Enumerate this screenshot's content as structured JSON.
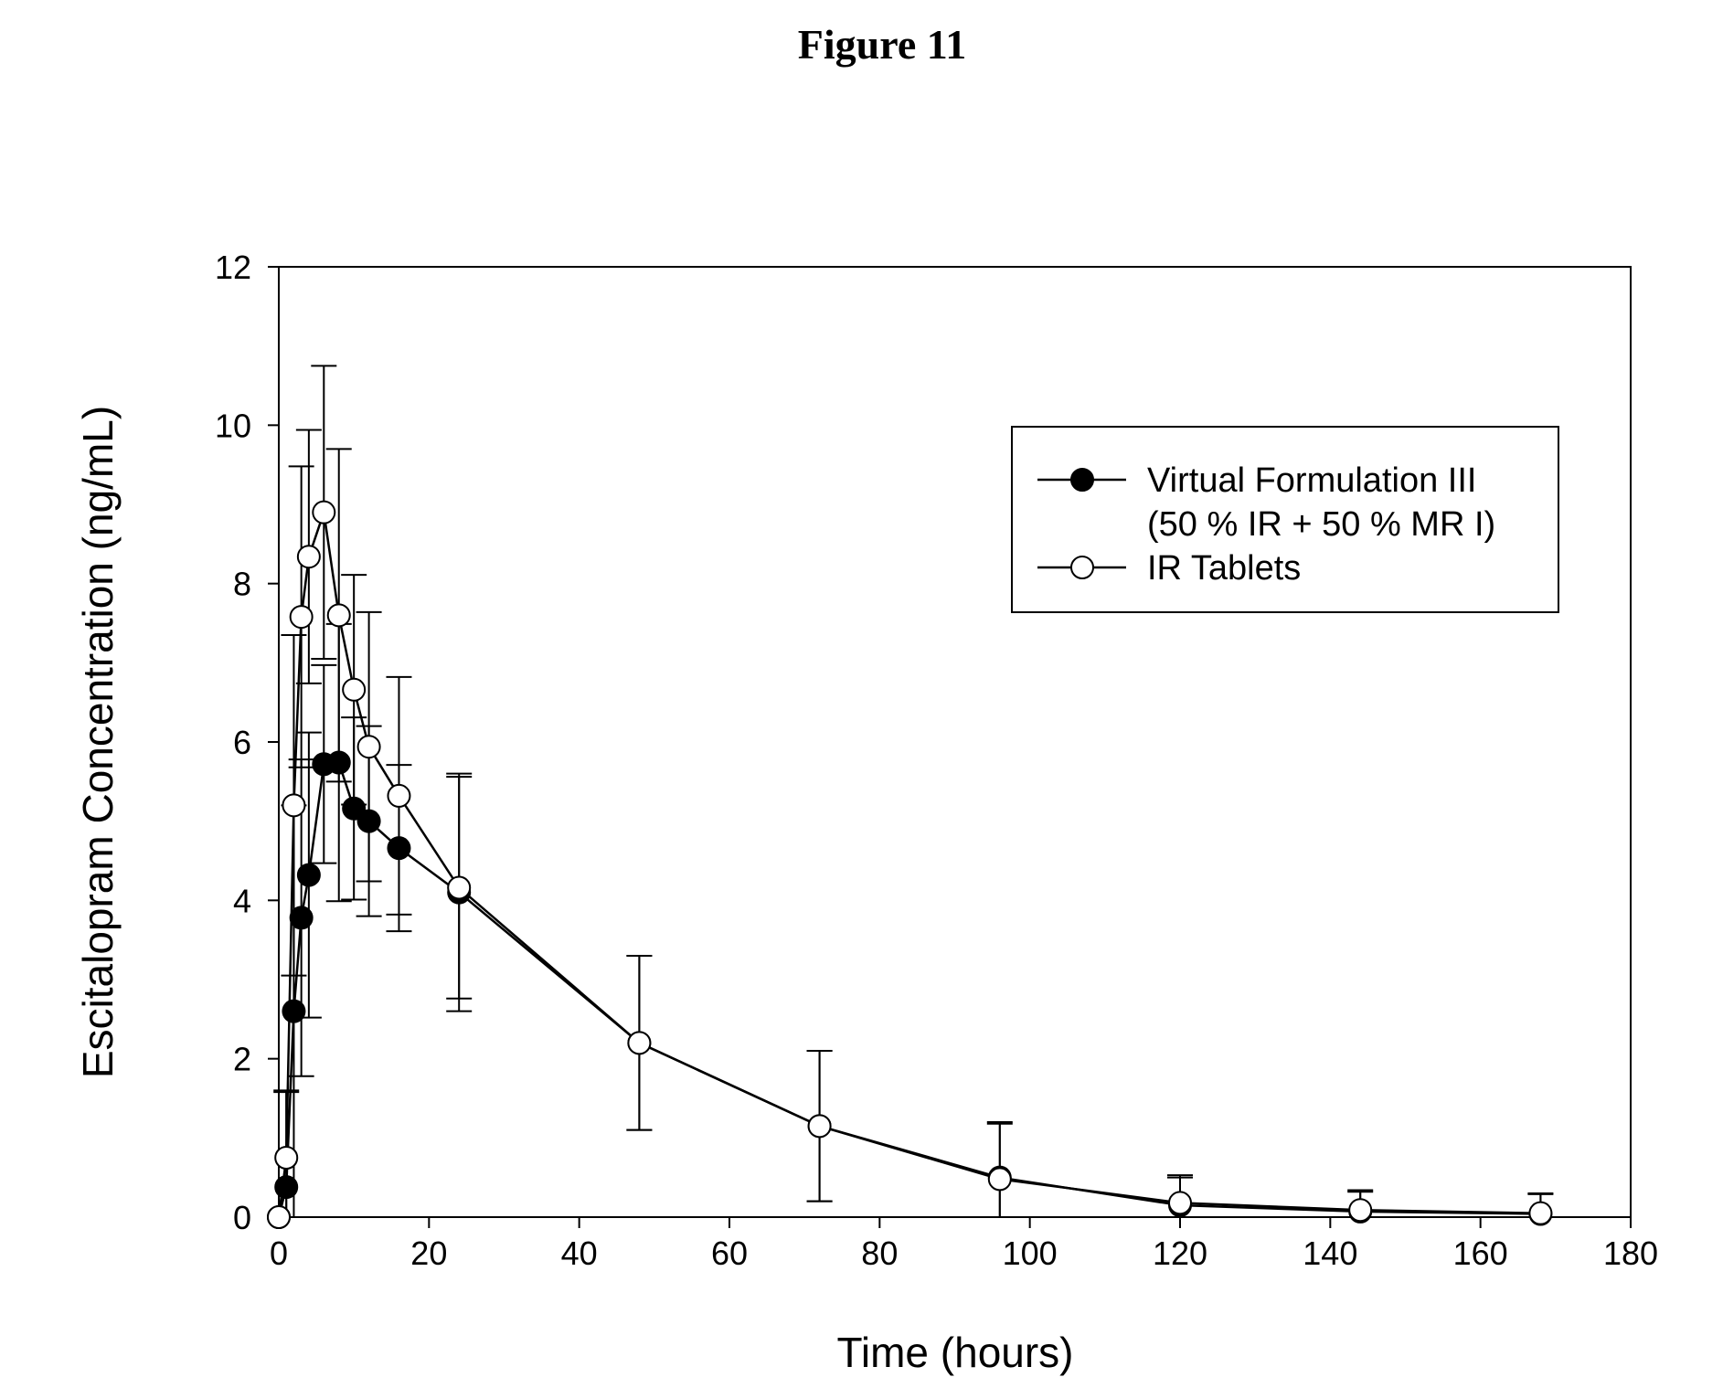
{
  "figure_title": "Figure 11",
  "chart_data": {
    "type": "line",
    "title": "",
    "xlabel": "Time (hours)",
    "ylabel": "Escitalopram Concentration (ng/mL)",
    "xlim": [
      0,
      180
    ],
    "ylim": [
      0,
      12
    ],
    "xticks": [
      0,
      20,
      40,
      60,
      80,
      100,
      120,
      140,
      160,
      180
    ],
    "yticks": [
      0,
      2,
      4,
      6,
      8,
      10,
      12
    ],
    "grid": false,
    "legend_position": "top-right",
    "series": [
      {
        "name": "Virtual Formulation III (50 %  IR + 50 % MR I)",
        "legend_lines": [
          "Virtual Formulation III",
          "(50 %  IR + 50 % MR I)"
        ],
        "marker": "filled-circle",
        "x": [
          0,
          1,
          2,
          3,
          4,
          6,
          8,
          10,
          12,
          16,
          24,
          48,
          72,
          96,
          120,
          144,
          168
        ],
        "y": [
          0,
          0.38,
          2.6,
          3.78,
          4.32,
          5.72,
          5.74,
          5.16,
          5.0,
          4.66,
          4.1,
          2.2,
          1.15,
          0.5,
          0.15,
          0.07,
          0.04
        ],
        "error": [
          0,
          1.2,
          2.6,
          2.0,
          1.8,
          1.25,
          1.75,
          1.15,
          1.2,
          1.05,
          1.5,
          1.1,
          0.95,
          0.7,
          0.35,
          0.25,
          0.25
        ]
      },
      {
        "name": "IR Tablets",
        "legend_lines": [
          "IR Tablets"
        ],
        "marker": "open-circle",
        "x": [
          0,
          1,
          2,
          3,
          4,
          6,
          8,
          10,
          12,
          16,
          24,
          48,
          72,
          96,
          120,
          144,
          168
        ],
        "y": [
          0,
          0.75,
          5.2,
          7.58,
          8.34,
          8.9,
          7.6,
          6.66,
          5.94,
          5.32,
          4.16,
          2.2,
          1.15,
          0.48,
          0.18,
          0.09,
          0.05
        ],
        "error": [
          0,
          0.85,
          2.15,
          1.9,
          1.6,
          1.85,
          2.1,
          1.45,
          1.7,
          1.5,
          1.4,
          1.1,
          0.95,
          0.7,
          0.35,
          0.25,
          0.25
        ]
      }
    ]
  }
}
